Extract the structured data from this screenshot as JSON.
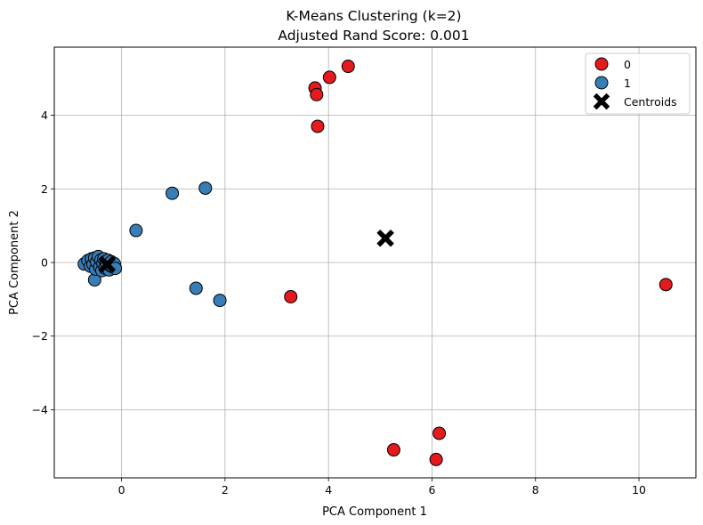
{
  "chart_data": {
    "type": "scatter",
    "title": "K-Means Clustering (k=2)",
    "subtitle": "Adjusted Rand Score: 0.001",
    "xlabel": "PCA Component 1",
    "ylabel": "PCA Component 2",
    "xlim": [
      -1.3,
      11.1
    ],
    "ylim": [
      -5.85,
      5.85
    ],
    "xticks": [
      0,
      2,
      4,
      6,
      8,
      10
    ],
    "yticks": [
      -4,
      -2,
      0,
      2,
      4
    ],
    "grid": true,
    "legend_position": "top-right",
    "colors": {
      "cluster_0": "#e41a1c",
      "cluster_1": "#377eb8",
      "centroid": "#000000",
      "edge": "#000000",
      "grid": "#b0b0b0"
    },
    "series": [
      {
        "name": "0",
        "color": "#e41a1c",
        "points": [
          [
            4.38,
            5.33
          ],
          [
            4.02,
            5.03
          ],
          [
            3.74,
            4.74
          ],
          [
            3.77,
            4.56
          ],
          [
            3.79,
            3.7
          ],
          [
            3.27,
            -0.93
          ],
          [
            10.52,
            -0.6
          ],
          [
            6.14,
            -4.64
          ],
          [
            5.26,
            -5.09
          ],
          [
            6.08,
            -5.35
          ]
        ]
      },
      {
        "name": "1",
        "color": "#377eb8",
        "points": [
          [
            1.62,
            2.02
          ],
          [
            0.98,
            1.88
          ],
          [
            0.28,
            0.87
          ],
          [
            1.44,
            -0.7
          ],
          [
            1.9,
            -1.03
          ],
          [
            -0.52,
            -0.47
          ],
          [
            -0.72,
            -0.04
          ],
          [
            -0.65,
            0.05
          ],
          [
            -0.6,
            -0.1
          ],
          [
            -0.58,
            0.1
          ],
          [
            -0.55,
            -0.05
          ],
          [
            -0.52,
            0.12
          ],
          [
            -0.5,
            -0.18
          ],
          [
            -0.48,
            0.02
          ],
          [
            -0.45,
            0.16
          ],
          [
            -0.42,
            -0.12
          ],
          [
            -0.4,
            0.07
          ],
          [
            -0.38,
            -0.22
          ],
          [
            -0.36,
            -0.02
          ],
          [
            -0.34,
            0.1
          ],
          [
            -0.32,
            -0.15
          ],
          [
            -0.3,
            0.03
          ],
          [
            -0.28,
            -0.06
          ],
          [
            -0.26,
            0.06
          ],
          [
            -0.24,
            -0.2
          ],
          [
            -0.22,
            -0.08
          ],
          [
            -0.2,
            0.02
          ],
          [
            -0.17,
            -0.12
          ],
          [
            -0.14,
            -0.03
          ],
          [
            -0.12,
            -0.16
          ]
        ]
      },
      {
        "name": "Centroids",
        "color": "#000000",
        "marker": "X",
        "points": [
          [
            5.1,
            0.66
          ],
          [
            -0.28,
            -0.05
          ]
        ]
      }
    ]
  }
}
